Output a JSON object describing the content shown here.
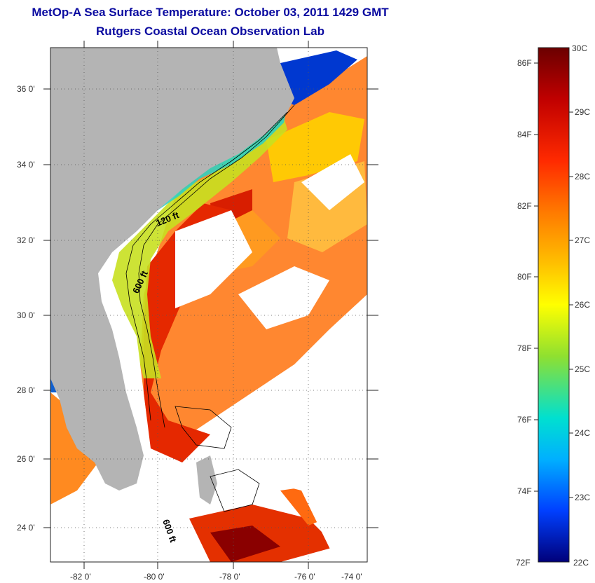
{
  "header": {
    "title": "MetOp-A Sea Surface Temperature:  October 03, 2011 1429 GMT",
    "subtitle": "Rutgers Coastal Ocean Observation Lab"
  },
  "map": {
    "lat_labels": [
      "36 0'",
      "34 0'",
      "32 0'",
      "30 0'",
      "28 0'",
      "26 0'",
      "24 0'"
    ],
    "lon_labels": [
      "-82 0'",
      "-80 0'",
      "-78 0'",
      "-76 0'",
      "-74 0'"
    ],
    "contour_labels": [
      "120 ft",
      "600 ft",
      "600 ft"
    ],
    "colors": {
      "land": "#b4b4b4",
      "cloud": "#ffffff"
    }
  },
  "colorbar": {
    "fahrenheit_labels": [
      "86F",
      "84F",
      "82F",
      "80F",
      "78F",
      "76F",
      "74F",
      "72F"
    ],
    "celsius_labels": [
      "30C",
      "29C",
      "28C",
      "27C",
      "26C",
      "25C",
      "24C",
      "23C",
      "22C"
    ]
  }
}
